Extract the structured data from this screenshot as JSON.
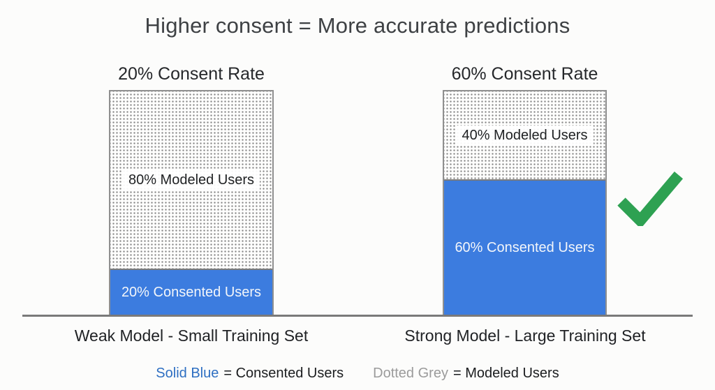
{
  "title": "Higher consent = More accurate predictions",
  "chart_data": {
    "type": "bar",
    "subtype": "stacked-percentage-columns",
    "ylim": [
      0,
      100
    ],
    "unit": "percent of users",
    "grid": false,
    "legend_position": "bottom",
    "categories": [
      "20% Consent Rate",
      "60% Consent Rate"
    ],
    "series": [
      {
        "name": "Consented Users",
        "style": "solid-blue",
        "values": [
          20,
          60
        ]
      },
      {
        "name": "Modeled Users",
        "style": "dotted-grey",
        "values": [
          80,
          40
        ]
      }
    ],
    "columns": [
      {
        "heading": "20% Consent Rate",
        "footer": "Weak Model - Small Training Set",
        "checked": false,
        "segments": {
          "modeled": {
            "value": 80,
            "label": "80% Modeled Users"
          },
          "consented": {
            "value": 20,
            "label": "20% Consented Users"
          }
        }
      },
      {
        "heading": "60% Consent Rate",
        "footer": "Strong Model - Large Training Set",
        "checked": true,
        "segments": {
          "modeled": {
            "value": 40,
            "label": "40% Modeled Users"
          },
          "consented": {
            "value": 60,
            "label": "60% Consented Users"
          }
        }
      }
    ]
  },
  "legend": {
    "consented_key": "Solid Blue",
    "consented_value": "= Consented Users",
    "modeled_key": "Dotted Grey",
    "modeled_value": "= Modeled Users"
  },
  "icons": {
    "check": "green-checkmark"
  },
  "colors": {
    "consented_blue": "#3C7CDF",
    "modeled_dot_grey": "#878787",
    "bar_border_grey": "#8F8F8F",
    "axis_grey": "#7A7A7A",
    "check_green": "#2EA152",
    "legend_blue": "#2E6FC2",
    "legend_grey": "#9B9B9B",
    "title_grey": "#3E4144"
  }
}
